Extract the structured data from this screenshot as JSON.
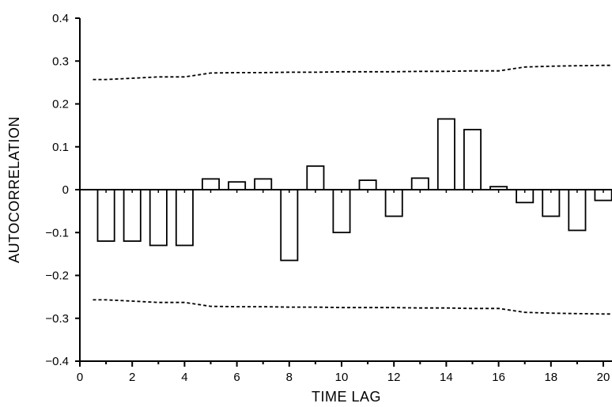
{
  "chart_data": {
    "type": "bar",
    "title": "",
    "xlabel": "TIME LAG",
    "ylabel": "AUTOCORRELATION",
    "xlim": [
      0,
      20.5
    ],
    "ylim": [
      -0.4,
      0.4
    ],
    "x_ticks": [
      0,
      2,
      4,
      6,
      8,
      10,
      12,
      14,
      16,
      18,
      20
    ],
    "y_ticks": [
      -0.4,
      -0.3,
      -0.2,
      -0.1,
      0,
      0.1,
      0.2,
      0.3,
      0.4
    ],
    "x_tick_labels": [
      "0",
      "2",
      "4",
      "6",
      "8",
      "10",
      "12",
      "14",
      "16",
      "18",
      "20"
    ],
    "y_tick_labels": [
      "−0.4",
      "−0.3",
      "−0.2",
      "−0.1",
      "0",
      "0.1",
      "0.2",
      "0.3",
      "0.4"
    ],
    "grid": false,
    "bar_fill": "#ffffff",
    "line_color": "#000000",
    "lags": [
      1,
      2,
      3,
      4,
      5,
      6,
      7,
      8,
      9,
      10,
      11,
      12,
      13,
      14,
      15,
      16,
      17,
      18,
      19,
      20
    ],
    "values": [
      -0.12,
      -0.12,
      -0.13,
      -0.13,
      0.025,
      0.018,
      0.025,
      -0.165,
      0.055,
      -0.1,
      0.022,
      -0.062,
      0.027,
      0.165,
      0.14,
      0.007,
      -0.03,
      -0.062,
      -0.095,
      -0.025
    ],
    "confidence_band": {
      "x": [
        0.5,
        1,
        2,
        3,
        4,
        5,
        6,
        7,
        8,
        9,
        10,
        11,
        12,
        13,
        14,
        15,
        16,
        17,
        18,
        19,
        20,
        20.5
      ],
      "upper": [
        0.257,
        0.257,
        0.26,
        0.263,
        0.263,
        0.272,
        0.273,
        0.273,
        0.274,
        0.274,
        0.275,
        0.275,
        0.275,
        0.276,
        0.276,
        0.277,
        0.277,
        0.286,
        0.288,
        0.289,
        0.29,
        0.29
      ],
      "lower": [
        -0.257,
        -0.257,
        -0.26,
        -0.263,
        -0.263,
        -0.272,
        -0.273,
        -0.273,
        -0.274,
        -0.274,
        -0.275,
        -0.275,
        -0.275,
        -0.276,
        -0.276,
        -0.277,
        -0.277,
        -0.286,
        -0.288,
        -0.289,
        -0.29,
        -0.29
      ]
    }
  }
}
